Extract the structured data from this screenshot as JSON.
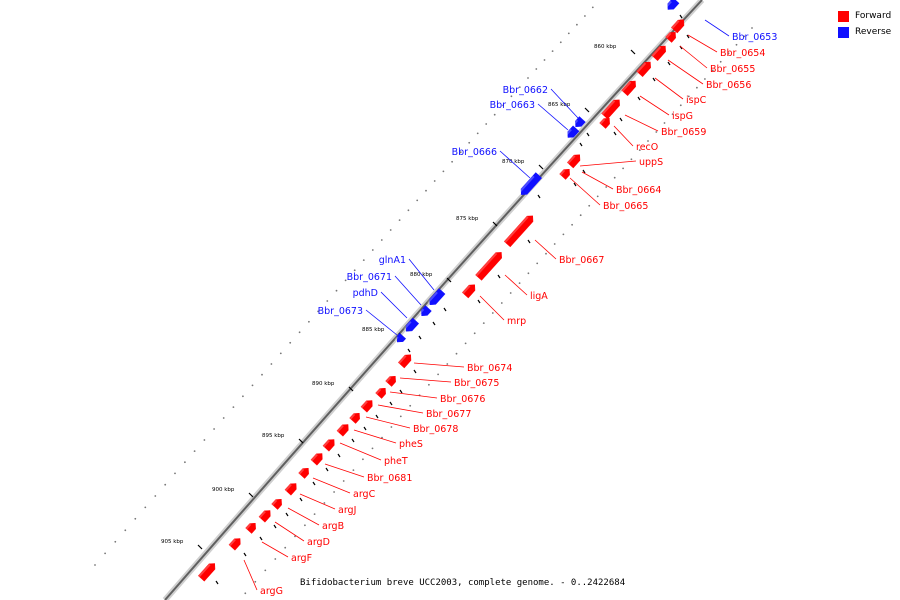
{
  "colors": {
    "forward": "#ff0000",
    "reverse": "#1010ff",
    "backbone": "#606060"
  },
  "legend": {
    "forward_label": "Forward",
    "reverse_label": "Reverse"
  },
  "caption": "Bifidobacterium breve UCC2003, complete genome. - 0..2422684",
  "ticks": [
    "860 kbp",
    "865 kbp",
    "870 kbp",
    "875 kbp",
    "880 kbp",
    "885 kbp",
    "890 kbp",
    "895 kbp",
    "900 kbp",
    "905 kbp"
  ],
  "forward_genes": [
    "Bbr_0654",
    "Bbr_0655",
    "Bbr_0656",
    "ispC",
    "ispG",
    "Bbr_0659",
    "recO",
    "uppS",
    "Bbr_0664",
    "Bbr_0665",
    "Bbr_0667",
    "ligA",
    "mrp",
    "Bbr_0674",
    "Bbr_0675",
    "Bbr_0676",
    "Bbr_0677",
    "Bbr_0678",
    "pheS",
    "pheT",
    "Bbr_0681",
    "argC",
    "argJ",
    "argB",
    "argD",
    "argF",
    "argG"
  ],
  "reverse_genes": [
    "Bbr_0653",
    "Bbr_0662",
    "Bbr_0663",
    "Bbr_0666",
    "glnA1",
    "Bbr_0671",
    "pdhD",
    "Bbr_0673"
  ]
}
